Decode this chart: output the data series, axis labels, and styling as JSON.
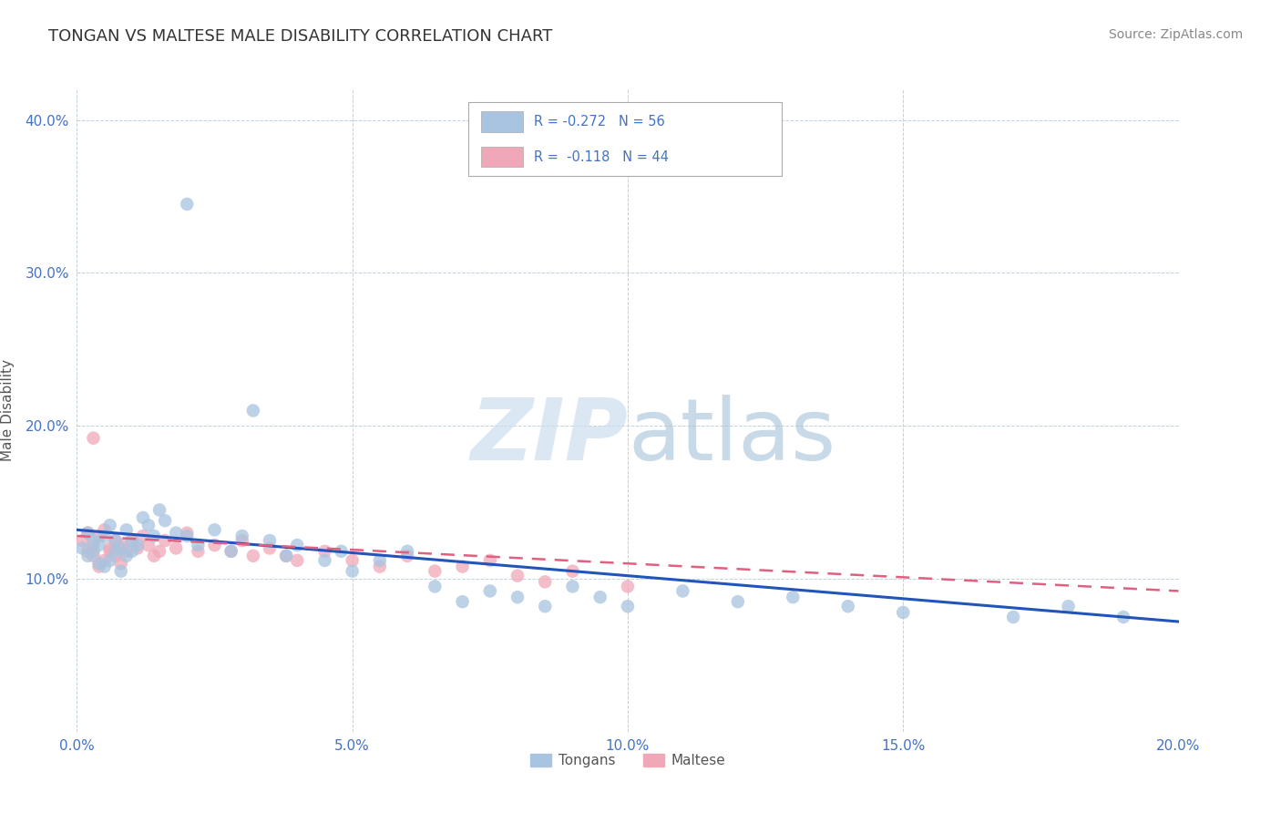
{
  "title": "TONGAN VS MALTESE MALE DISABILITY CORRELATION CHART",
  "source": "Source: ZipAtlas.com",
  "ylabel": "Male Disability",
  "legend_entries": [
    {
      "label": "R = -0.272   N = 56",
      "color": "#a8c4e0"
    },
    {
      "label": "R =  -0.118   N = 44",
      "color": "#f0a8b8"
    }
  ],
  "legend_labels_bottom": [
    "Tongans",
    "Maltese"
  ],
  "xlim": [
    0.0,
    0.2
  ],
  "ylim": [
    0.0,
    0.42
  ],
  "xticks": [
    0.0,
    0.05,
    0.1,
    0.15,
    0.2
  ],
  "xticklabels": [
    "0.0%",
    "5.0%",
    "10.0%",
    "15.0%",
    "20.0%"
  ],
  "yticks": [
    0.1,
    0.2,
    0.3,
    0.4
  ],
  "yticklabels": [
    "10.0%",
    "20.0%",
    "30.0%",
    "40.0%"
  ],
  "grid_color": "#c0d0e0",
  "background_color": "#ffffff",
  "tongan_color": "#a8c4e0",
  "maltese_color": "#f0a8b8",
  "tongan_line_color": "#2255bb",
  "maltese_line_color": "#e06080",
  "tongan_line_start": 0.132,
  "tongan_line_end": 0.072,
  "maltese_line_start": 0.128,
  "maltese_line_end": 0.092,
  "tongan_scatter_x": [
    0.001,
    0.002,
    0.002,
    0.003,
    0.003,
    0.004,
    0.004,
    0.005,
    0.005,
    0.006,
    0.006,
    0.007,
    0.007,
    0.008,
    0.008,
    0.009,
    0.009,
    0.01,
    0.01,
    0.011,
    0.012,
    0.013,
    0.014,
    0.015,
    0.016,
    0.018,
    0.02,
    0.022,
    0.025,
    0.028,
    0.03,
    0.032,
    0.035,
    0.038,
    0.04,
    0.045,
    0.048,
    0.05,
    0.055,
    0.06,
    0.065,
    0.07,
    0.075,
    0.08,
    0.085,
    0.09,
    0.095,
    0.1,
    0.11,
    0.12,
    0.13,
    0.14,
    0.15,
    0.17,
    0.18,
    0.19
  ],
  "tongan_scatter_y": [
    0.12,
    0.13,
    0.115,
    0.125,
    0.118,
    0.122,
    0.11,
    0.128,
    0.108,
    0.135,
    0.112,
    0.125,
    0.118,
    0.12,
    0.105,
    0.115,
    0.132,
    0.118,
    0.125,
    0.122,
    0.14,
    0.135,
    0.128,
    0.145,
    0.138,
    0.13,
    0.128,
    0.122,
    0.132,
    0.118,
    0.128,
    0.21,
    0.125,
    0.115,
    0.122,
    0.112,
    0.118,
    0.105,
    0.112,
    0.118,
    0.095,
    0.085,
    0.092,
    0.088,
    0.082,
    0.095,
    0.088,
    0.082,
    0.092,
    0.085,
    0.088,
    0.082,
    0.078,
    0.075,
    0.082,
    0.075
  ],
  "tongan_outlier_x": [
    0.02
  ],
  "tongan_outlier_y": [
    0.345
  ],
  "maltese_scatter_x": [
    0.001,
    0.002,
    0.002,
    0.003,
    0.003,
    0.004,
    0.004,
    0.005,
    0.005,
    0.006,
    0.006,
    0.007,
    0.007,
    0.008,
    0.008,
    0.009,
    0.01,
    0.011,
    0.012,
    0.013,
    0.014,
    0.015,
    0.016,
    0.018,
    0.02,
    0.022,
    0.025,
    0.028,
    0.03,
    0.032,
    0.035,
    0.038,
    0.04,
    0.045,
    0.05,
    0.055,
    0.06,
    0.065,
    0.07,
    0.075,
    0.08,
    0.085,
    0.09,
    0.1
  ],
  "maltese_scatter_y": [
    0.125,
    0.13,
    0.118,
    0.122,
    0.115,
    0.128,
    0.108,
    0.132,
    0.112,
    0.12,
    0.118,
    0.125,
    0.115,
    0.122,
    0.11,
    0.118,
    0.125,
    0.12,
    0.128,
    0.122,
    0.115,
    0.118,
    0.125,
    0.12,
    0.13,
    0.118,
    0.122,
    0.118,
    0.125,
    0.115,
    0.12,
    0.115,
    0.112,
    0.118,
    0.112,
    0.108,
    0.115,
    0.105,
    0.108,
    0.112,
    0.102,
    0.098,
    0.105,
    0.095
  ],
  "maltese_outlier_x": [
    0.003
  ],
  "maltese_outlier_y": [
    0.192
  ]
}
